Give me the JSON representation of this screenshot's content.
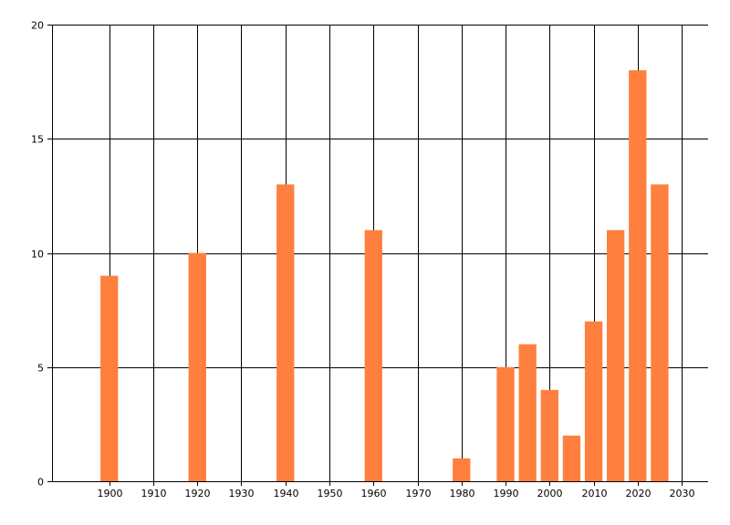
{
  "chart_data": {
    "type": "bar",
    "title": "",
    "xlabel": "",
    "ylabel": "",
    "x": [
      1900,
      1920,
      1940,
      1960,
      1980,
      1990,
      1995,
      2000,
      2005,
      2010,
      2015,
      2020,
      2025
    ],
    "values": [
      9,
      10,
      13,
      11,
      1,
      5,
      6,
      4,
      2,
      7,
      11,
      18,
      13
    ],
    "xlim": [
      1887,
      2036
    ],
    "ylim": [
      0,
      20
    ],
    "x_ticks": [
      "1900",
      "1910",
      "1920",
      "1930",
      "1940",
      "1950",
      "1960",
      "1970",
      "1980",
      "1990",
      "2000",
      "2010",
      "2020",
      "2030"
    ],
    "y_ticks": [
      "0",
      "5",
      "10",
      "15",
      "20"
    ],
    "grid": true,
    "legend": "none",
    "bar_color": "#ff7f3f",
    "grid_color": "#000000"
  }
}
